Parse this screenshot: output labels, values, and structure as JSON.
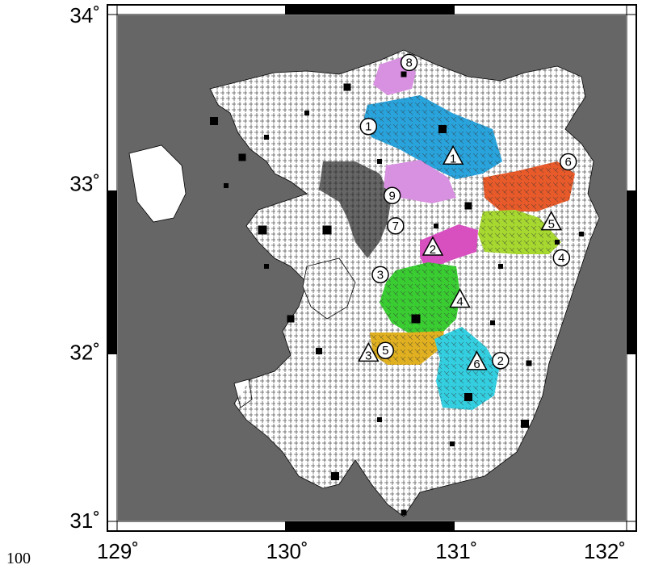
{
  "corner_number": "100",
  "axes": {
    "x_ticks": [
      {
        "value": 129,
        "label": "129˚"
      },
      {
        "value": 130,
        "label": "130˚"
      },
      {
        "value": 131,
        "label": "131˚"
      },
      {
        "value": 132,
        "label": "132˚"
      }
    ],
    "y_ticks": [
      {
        "value": 34,
        "label": "34˚"
      },
      {
        "value": 33,
        "label": "33˚"
      },
      {
        "value": 32,
        "label": "32˚"
      },
      {
        "value": 31,
        "label": "31˚"
      }
    ],
    "lon_range": [
      129,
      132
    ],
    "lat_range": [
      31,
      34
    ]
  },
  "colors": {
    "sea": "#666666",
    "land": "#ffffff",
    "frame": "#000000",
    "basin_1": "#29a3dc",
    "basin_2": "#33cfe0",
    "basin_3": "#e070d8",
    "basin_4": "#3acd32",
    "basin_5": "#e0b020",
    "basin_6": "#e85a2a",
    "basin_7": "#d850c0",
    "basin_8": "#d890e0",
    "basin_9": "#d890e0",
    "basin_yellowgreen": "#a6d830"
  },
  "circle_markers": [
    {
      "label": "1",
      "lon": 130.48,
      "lat": 33.34
    },
    {
      "label": "2",
      "lon": 131.26,
      "lat": 31.95
    },
    {
      "label": "3",
      "lon": 130.55,
      "lat": 32.46
    },
    {
      "label": "4",
      "lon": 131.62,
      "lat": 32.56
    },
    {
      "label": "5",
      "lon": 130.58,
      "lat": 32.01
    },
    {
      "label": "6",
      "lon": 131.66,
      "lat": 33.13
    },
    {
      "label": "7",
      "lon": 130.64,
      "lat": 32.75
    },
    {
      "label": "8",
      "lon": 130.72,
      "lat": 33.72
    },
    {
      "label": "9",
      "lon": 130.62,
      "lat": 32.93
    }
  ],
  "triangle_markers": [
    {
      "label": "1",
      "lon": 130.98,
      "lat": 33.16
    },
    {
      "label": "2",
      "lon": 130.86,
      "lat": 32.62
    },
    {
      "label": "3",
      "lon": 130.48,
      "lat": 31.99
    },
    {
      "label": "4",
      "lon": 131.02,
      "lat": 32.31
    },
    {
      "label": "5",
      "lon": 131.56,
      "lat": 32.77
    },
    {
      "label": "6",
      "lon": 131.12,
      "lat": 31.94
    }
  ]
}
